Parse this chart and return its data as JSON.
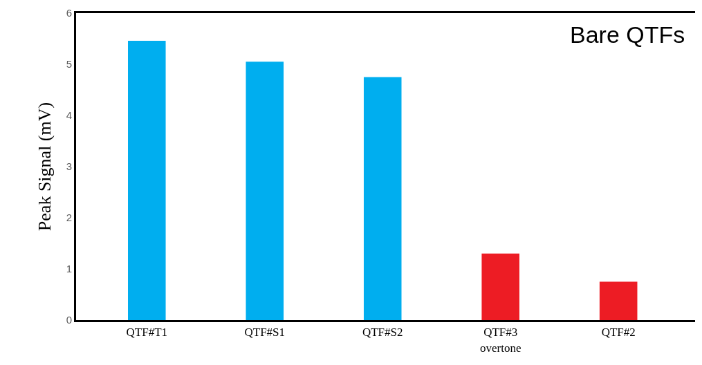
{
  "chart_data": {
    "type": "bar",
    "ylabel": "Peak Signal (mV)",
    "categories": [
      "QTF#T1",
      "QTF#S1",
      "QTF#S2",
      "QTF#3\novertone",
      "QTF#2"
    ],
    "values": [
      5.46,
      5.05,
      4.75,
      1.3,
      0.75
    ],
    "colors": [
      "#00aeef",
      "#00aeef",
      "#00aeef",
      "#ed1c24",
      "#ed1c24"
    ],
    "ylim": [
      0,
      6
    ],
    "yticks": [
      0,
      1,
      2,
      3,
      4,
      5,
      6
    ],
    "annotations": [
      "Bare QTFs"
    ]
  }
}
